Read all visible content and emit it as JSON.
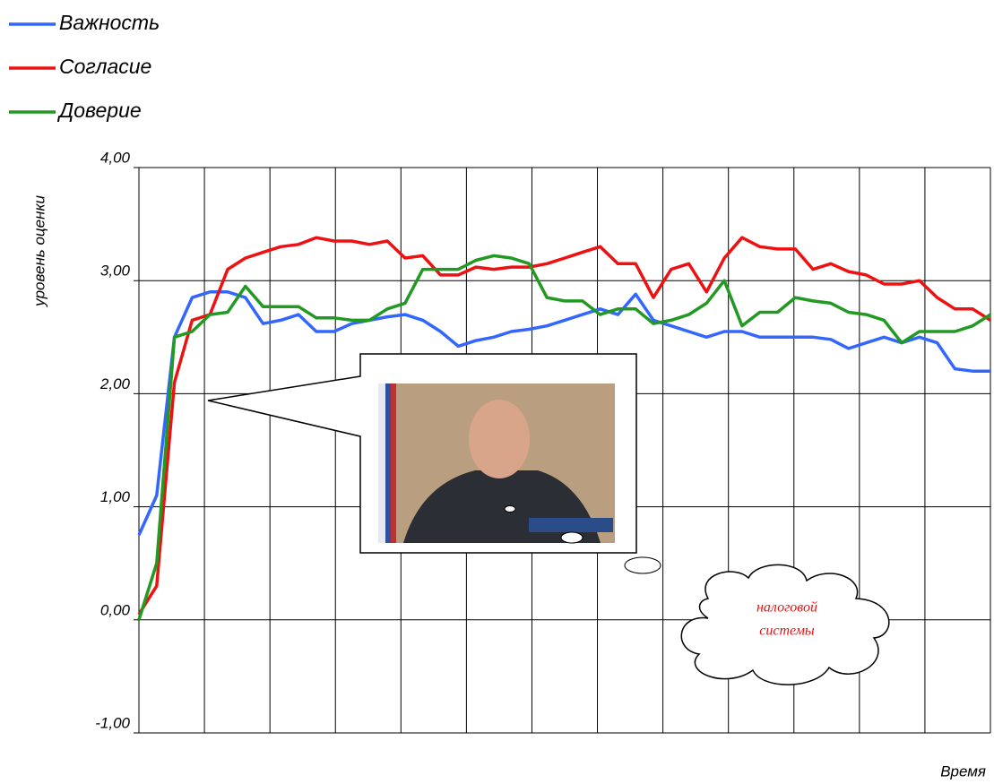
{
  "chart_data": {
    "type": "line",
    "y_label": "уровень оценки",
    "x_label": "Время",
    "ylim": [
      -1,
      4
    ],
    "yticks": [
      {
        "value": -1,
        "label": "-1,00"
      },
      {
        "value": 0,
        "label": "0,00"
      },
      {
        "value": 1,
        "label": "1,00"
      },
      {
        "value": 2,
        "label": "2,00"
      },
      {
        "value": 3,
        "label": "3,00"
      },
      {
        "value": 4,
        "label": "4,00"
      }
    ],
    "grid": true,
    "legend": "top-left",
    "series": [
      {
        "name": "Важность",
        "color": "#3366ff",
        "values": [
          0.75,
          1.1,
          2.5,
          2.85,
          2.9,
          2.9,
          2.85,
          2.62,
          2.65,
          2.7,
          2.55,
          2.55,
          2.62,
          2.65,
          2.68,
          2.7,
          2.65,
          2.55,
          2.42,
          2.47,
          2.5,
          2.55,
          2.57,
          2.6,
          2.65,
          2.7,
          2.75,
          2.7,
          2.88,
          2.65,
          2.6,
          2.55,
          2.5,
          2.55,
          2.55,
          2.5,
          2.5,
          2.5,
          2.5,
          2.48,
          2.4,
          2.45,
          2.5,
          2.45,
          2.5,
          2.45,
          2.22,
          2.2,
          2.2
        ]
      },
      {
        "name": "Согласие",
        "color": "#ee1111",
        "values": [
          0.05,
          0.3,
          2.1,
          2.65,
          2.7,
          3.1,
          3.2,
          3.25,
          3.3,
          3.32,
          3.38,
          3.35,
          3.35,
          3.32,
          3.35,
          3.2,
          3.22,
          3.05,
          3.05,
          3.12,
          3.1,
          3.12,
          3.12,
          3.15,
          3.2,
          3.25,
          3.3,
          3.15,
          3.15,
          2.85,
          3.1,
          3.15,
          2.9,
          3.2,
          3.38,
          3.3,
          3.28,
          3.28,
          3.1,
          3.15,
          3.08,
          3.05,
          2.97,
          2.97,
          3.0,
          2.85,
          2.75,
          2.75,
          2.65
        ]
      },
      {
        "name": "Доверие",
        "color": "#229922",
        "values": [
          0,
          0.5,
          2.5,
          2.55,
          2.7,
          2.72,
          2.95,
          2.77,
          2.77,
          2.77,
          2.67,
          2.67,
          2.65,
          2.65,
          2.75,
          2.8,
          3.1,
          3.1,
          3.1,
          3.18,
          3.22,
          3.2,
          3.15,
          2.85,
          2.82,
          2.82,
          2.7,
          2.75,
          2.75,
          2.62,
          2.65,
          2.7,
          2.8,
          3.0,
          2.6,
          2.72,
          2.72,
          2.85,
          2.82,
          2.8,
          2.72,
          2.7,
          2.65,
          2.45,
          2.55,
          2.55,
          2.55,
          2.6,
          2.7
        ]
      }
    ],
    "cloud": {
      "lines": [
        "налоговой",
        "системы"
      ]
    }
  }
}
